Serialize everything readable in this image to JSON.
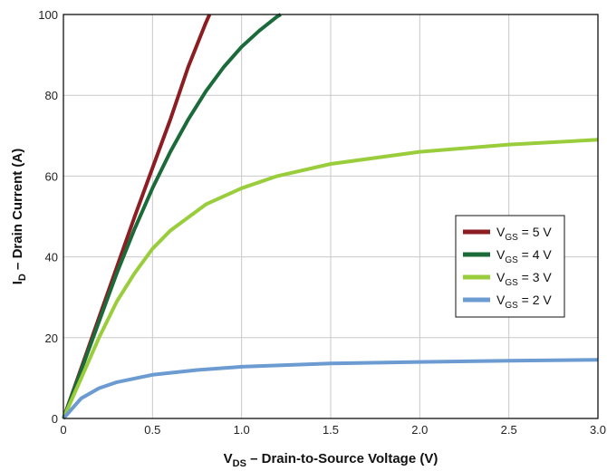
{
  "chart_data": {
    "type": "line",
    "xlabel": {
      "main": "V",
      "sub": "DS",
      "rest": " – Drain-to-Source Voltage (V)"
    },
    "ylabel": {
      "main": "I",
      "sub": "D",
      "rest": " – Drain Current (A)"
    },
    "xlim": [
      0,
      3.0
    ],
    "ylim": [
      0,
      100
    ],
    "x_ticks": [
      "0",
      "0.5",
      "1.0",
      "1.5",
      "2.0",
      "2.5",
      "3.0"
    ],
    "y_ticks": [
      "0",
      "20",
      "40",
      "60",
      "80",
      "100"
    ],
    "grid": true,
    "legend_position": "right-middle",
    "series": [
      {
        "name": "VGS = 5 V",
        "legend": {
          "main": "V",
          "sub": "GS",
          "rest": " = 5 V"
        },
        "color": "#8c1d22",
        "x": [
          0,
          0.1,
          0.2,
          0.3,
          0.4,
          0.5,
          0.6,
          0.7,
          0.8,
          0.82
        ],
        "y": [
          0,
          12.5,
          25,
          37.5,
          50,
          62,
          74,
          87,
          98,
          100
        ]
      },
      {
        "name": "VGS = 4 V",
        "legend": {
          "main": "V",
          "sub": "GS",
          "rest": " = 4 V"
        },
        "color": "#1b6b3a",
        "x": [
          0,
          0.1,
          0.2,
          0.3,
          0.4,
          0.5,
          0.6,
          0.7,
          0.8,
          0.9,
          1.0,
          1.1,
          1.2,
          1.22
        ],
        "y": [
          0,
          12,
          24,
          36,
          47,
          57,
          66,
          74,
          81,
          87,
          92,
          96,
          99.5,
          100
        ]
      },
      {
        "name": "VGS = 3 V",
        "legend": {
          "main": "V",
          "sub": "GS",
          "rest": " = 3 V"
        },
        "color": "#9acd3c",
        "x": [
          0,
          0.1,
          0.2,
          0.3,
          0.4,
          0.5,
          0.6,
          0.8,
          1.0,
          1.2,
          1.5,
          2.0,
          2.5,
          3.0
        ],
        "y": [
          0,
          10,
          20,
          29,
          36,
          42,
          46.5,
          53,
          57,
          60,
          63,
          66,
          67.8,
          69
        ]
      },
      {
        "name": "VGS = 2 V",
        "legend": {
          "main": "V",
          "sub": "GS",
          "rest": " = 2 V"
        },
        "color": "#6b9bd1",
        "x": [
          0,
          0.1,
          0.2,
          0.3,
          0.5,
          0.75,
          1.0,
          1.5,
          2.0,
          2.5,
          3.0
        ],
        "y": [
          0,
          5,
          7.5,
          9,
          10.8,
          12,
          12.8,
          13.6,
          14,
          14.3,
          14.5
        ]
      }
    ]
  }
}
